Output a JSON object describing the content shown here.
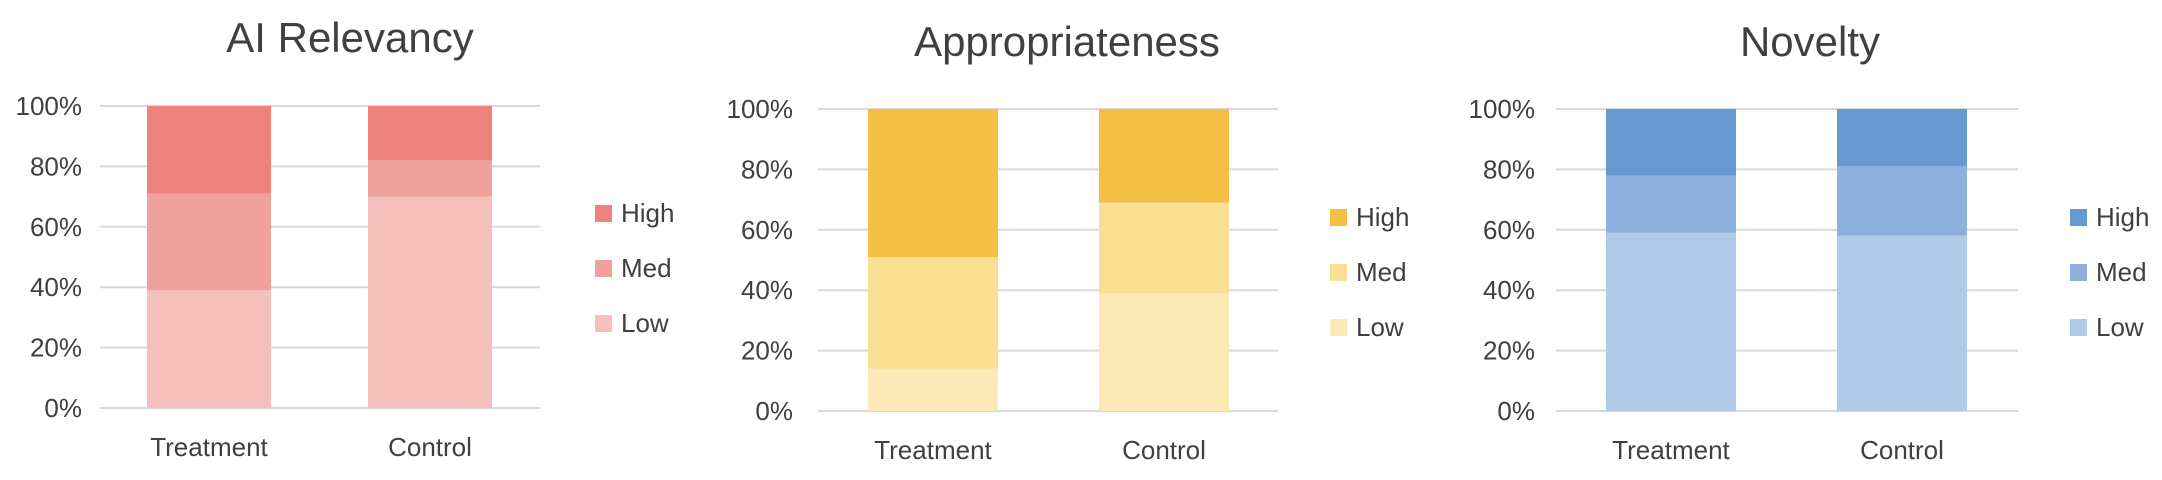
{
  "chart_data": [
    {
      "type": "bar",
      "stacked": true,
      "title": "AI Relevancy",
      "categories": [
        "Treatment",
        "Control"
      ],
      "series": [
        {
          "name": "Low",
          "values": [
            39,
            70
          ],
          "color": "#f5bfbc"
        },
        {
          "name": "Med",
          "values": [
            32,
            12
          ],
          "color": "#f0a19d"
        },
        {
          "name": "High",
          "values": [
            29,
            18
          ],
          "color": "#ee837d"
        }
      ],
      "yticks": [
        "0%",
        "20%",
        "40%",
        "60%",
        "80%",
        "100%"
      ],
      "ylim": [
        0,
        100
      ],
      "grid": true,
      "legend": "right"
    },
    {
      "type": "bar",
      "stacked": true,
      "title": "Appropriateness",
      "categories": [
        "Treatment",
        "Control"
      ],
      "series": [
        {
          "name": "Low",
          "values": [
            14,
            39
          ],
          "color": "#fbe9b6"
        },
        {
          "name": "Med",
          "values": [
            37,
            30
          ],
          "color": "#f9df91"
        },
        {
          "name": "High",
          "values": [
            49,
            31
          ],
          "color": "#f4bf45"
        }
      ],
      "yticks": [
        "0%",
        "20%",
        "40%",
        "60%",
        "80%",
        "100%"
      ],
      "ylim": [
        0,
        100
      ],
      "grid": true,
      "legend": "right"
    },
    {
      "type": "bar",
      "stacked": true,
      "title": "Novelty",
      "categories": [
        "Treatment",
        "Control"
      ],
      "series": [
        {
          "name": "Low",
          "values": [
            59,
            58
          ],
          "color": "#b1cae7"
        },
        {
          "name": "Med",
          "values": [
            19,
            23
          ],
          "color": "#8eb0dc"
        },
        {
          "name": "High",
          "values": [
            22,
            19
          ],
          "color": "#6699cf"
        }
      ],
      "yticks": [
        "0%",
        "20%",
        "40%",
        "60%",
        "80%",
        "100%"
      ],
      "ylim": [
        0,
        100
      ],
      "grid": true,
      "legend": "right"
    }
  ]
}
